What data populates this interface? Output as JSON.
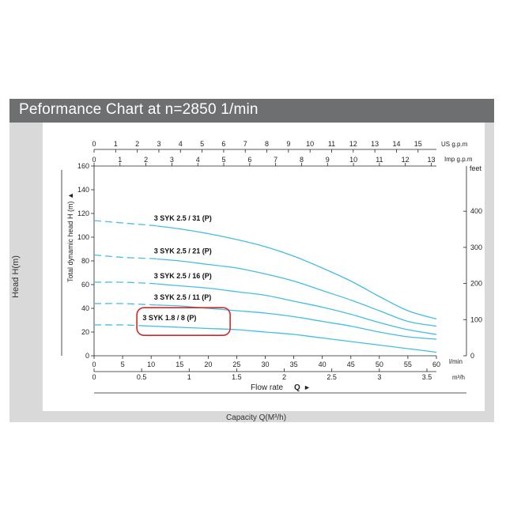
{
  "header": {
    "title": "Peformance Chart at n=2850 1/min"
  },
  "side_label": "Head H(m)",
  "bottom_label": "Capacity Q(M³/h)",
  "colors": {
    "curve": "#42bde6",
    "highlight": "#cc2b2b",
    "header_bg": "#6e6f71",
    "frame": "#d9d9d9"
  },
  "chart_data": {
    "type": "line",
    "y_axis_label": "Total dynamic head H (m)",
    "y_axis_arrow": "▲",
    "y_left": {
      "unit": "",
      "range": [
        0,
        160
      ],
      "ticks": [
        0,
        20,
        40,
        60,
        80,
        100,
        120,
        140,
        160
      ]
    },
    "y_right": {
      "unit": "feet",
      "range": [
        0,
        525
      ],
      "ticks": [
        0,
        100,
        200,
        300,
        400
      ]
    },
    "x_lmin": {
      "unit": "l/min",
      "range": [
        0,
        60
      ],
      "ticks": [
        0,
        5,
        10,
        15,
        20,
        25,
        30,
        35,
        40,
        45,
        50,
        55,
        60
      ]
    },
    "x_m3h": {
      "unit": "m³/h",
      "ticks": [
        0,
        0.5,
        1,
        1.5,
        2,
        2.5,
        3,
        3.5
      ],
      "labels": [
        "0",
        "0.5",
        "1",
        "1.5",
        "2",
        "2.5",
        "3",
        "3.5"
      ]
    },
    "x_usgpm": {
      "unit": "US g.p.m",
      "ticks": [
        0,
        1,
        2,
        3,
        4,
        5,
        6,
        7,
        8,
        9,
        10,
        11,
        12,
        13,
        14,
        15
      ]
    },
    "x_impgpm": {
      "unit": "Imp g.p.m",
      "ticks": [
        0,
        1,
        2,
        3,
        4,
        5,
        6,
        7,
        8,
        9,
        10,
        11,
        12,
        13
      ]
    },
    "x_label": "Flow  rate",
    "x_symbol": "Q",
    "x_arrow": "►",
    "series": [
      {
        "name": "3 SYK 2.5 / 31 (P)",
        "points": [
          [
            0,
            114
          ],
          [
            5,
            112
          ],
          [
            10,
            110
          ],
          [
            15,
            107
          ],
          [
            20,
            103
          ],
          [
            25,
            98
          ],
          [
            30,
            92
          ],
          [
            35,
            84
          ],
          [
            40,
            74
          ],
          [
            45,
            63
          ],
          [
            50,
            50
          ],
          [
            55,
            38
          ],
          [
            60,
            31
          ]
        ],
        "dashed_to": 11
      },
      {
        "name": "3 SYK 2.5 / 21 (P)",
        "points": [
          [
            0,
            85
          ],
          [
            5,
            83
          ],
          [
            10,
            82
          ],
          [
            15,
            80
          ],
          [
            20,
            77
          ],
          [
            25,
            74
          ],
          [
            30,
            69
          ],
          [
            35,
            63
          ],
          [
            40,
            55
          ],
          [
            45,
            47
          ],
          [
            50,
            38
          ],
          [
            55,
            29
          ],
          [
            60,
            25
          ]
        ],
        "dashed_to": 11
      },
      {
        "name": "3 SYK 2.5 / 16 (P)",
        "points": [
          [
            0,
            62
          ],
          [
            5,
            62
          ],
          [
            10,
            61
          ],
          [
            15,
            59
          ],
          [
            20,
            57
          ],
          [
            25,
            54
          ],
          [
            30,
            51
          ],
          [
            35,
            46
          ],
          [
            40,
            41
          ],
          [
            45,
            35
          ],
          [
            50,
            28
          ],
          [
            55,
            22
          ],
          [
            60,
            18
          ]
        ],
        "dashed_to": 11
      },
      {
        "name": "3 SYK 2.5 / 11 (P)",
        "points": [
          [
            0,
            44
          ],
          [
            5,
            44
          ],
          [
            10,
            43
          ],
          [
            15,
            42
          ],
          [
            20,
            40
          ],
          [
            25,
            38
          ],
          [
            30,
            36
          ],
          [
            35,
            33
          ],
          [
            40,
            29
          ],
          [
            45,
            25
          ],
          [
            50,
            20
          ],
          [
            55,
            16
          ],
          [
            60,
            14
          ]
        ],
        "dashed_to": 11
      },
      {
        "name": "3 SYK 1.8 / 8 (P)",
        "points": [
          [
            0,
            26
          ],
          [
            5,
            26
          ],
          [
            10,
            25
          ],
          [
            15,
            24
          ],
          [
            20,
            23
          ],
          [
            25,
            22
          ],
          [
            30,
            20
          ],
          [
            35,
            18
          ],
          [
            40,
            15
          ],
          [
            45,
            12
          ],
          [
            50,
            9
          ],
          [
            55,
            6
          ],
          [
            60,
            3
          ]
        ],
        "dashed_to": 9,
        "highlighted": true
      }
    ]
  }
}
